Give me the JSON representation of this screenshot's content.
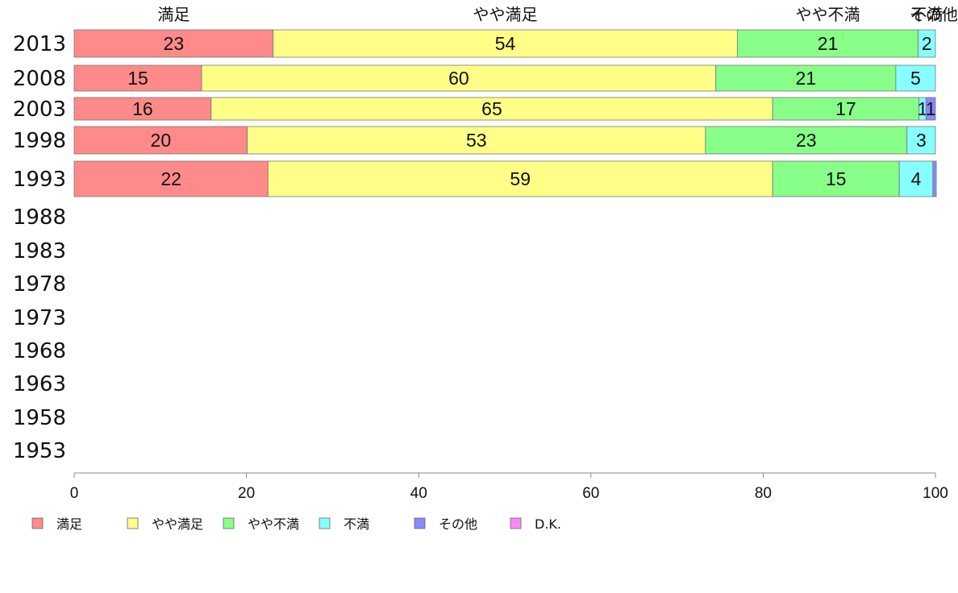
{
  "chart_data": {
    "type": "bar",
    "orientation": "horizontal",
    "stacked": true,
    "categories": [
      "2013",
      "2008",
      "2003",
      "1998",
      "1993",
      "1988",
      "1983",
      "1978",
      "1973",
      "1968",
      "1963",
      "1958",
      "1953"
    ],
    "column_labels": [
      "満足",
      "やや満足",
      "やや不満",
      "不満",
      "その他"
    ],
    "series": [
      {
        "name": "満足",
        "color": "#ff8a8a",
        "values": [
          23.1,
          14.8,
          15.9,
          20.1,
          22.5,
          null,
          null,
          null,
          null,
          null,
          null,
          null,
          null
        ],
        "labels": [
          "23",
          "15",
          "16",
          "20",
          "22"
        ]
      },
      {
        "name": "やや満足",
        "color": "#ffff88",
        "values": [
          53.9,
          59.7,
          65.2,
          53.2,
          58.6,
          null,
          null,
          null,
          null,
          null,
          null,
          null,
          null
        ],
        "labels": [
          "54",
          "60",
          "65",
          "53",
          "59"
        ]
      },
      {
        "name": "やや不満",
        "color": "#88ff88",
        "values": [
          21.0,
          20.9,
          17.0,
          23.4,
          14.7,
          null,
          null,
          null,
          null,
          null,
          null,
          null,
          null
        ],
        "labels": [
          "21",
          "21",
          "17",
          "23",
          "15"
        ]
      },
      {
        "name": "不満",
        "color": "#88ffff",
        "values": [
          2.0,
          4.6,
          0.8,
          3.3,
          3.9,
          null,
          null,
          null,
          null,
          null,
          null,
          null,
          null
        ],
        "labels": [
          "2",
          "5",
          "1",
          "3",
          "4"
        ]
      },
      {
        "name": "その他",
        "color": "#8888ff",
        "values": [
          0,
          0,
          1.1,
          0,
          0.4,
          null,
          null,
          null,
          null,
          null,
          null,
          null,
          null
        ],
        "labels": [
          "",
          "",
          "1",
          "",
          ""
        ]
      },
      {
        "name": "D.K.",
        "color": "#ff88ff",
        "values": [
          0,
          0,
          0,
          0,
          0,
          null,
          null,
          null,
          null,
          null,
          null,
          null,
          null
        ],
        "labels": [
          "",
          "",
          "",
          "",
          ""
        ]
      }
    ],
    "xlim": [
      0,
      100
    ],
    "xticks": [
      0,
      20,
      40,
      60,
      80,
      100
    ],
    "legend_position": "bottom",
    "grid": false
  }
}
